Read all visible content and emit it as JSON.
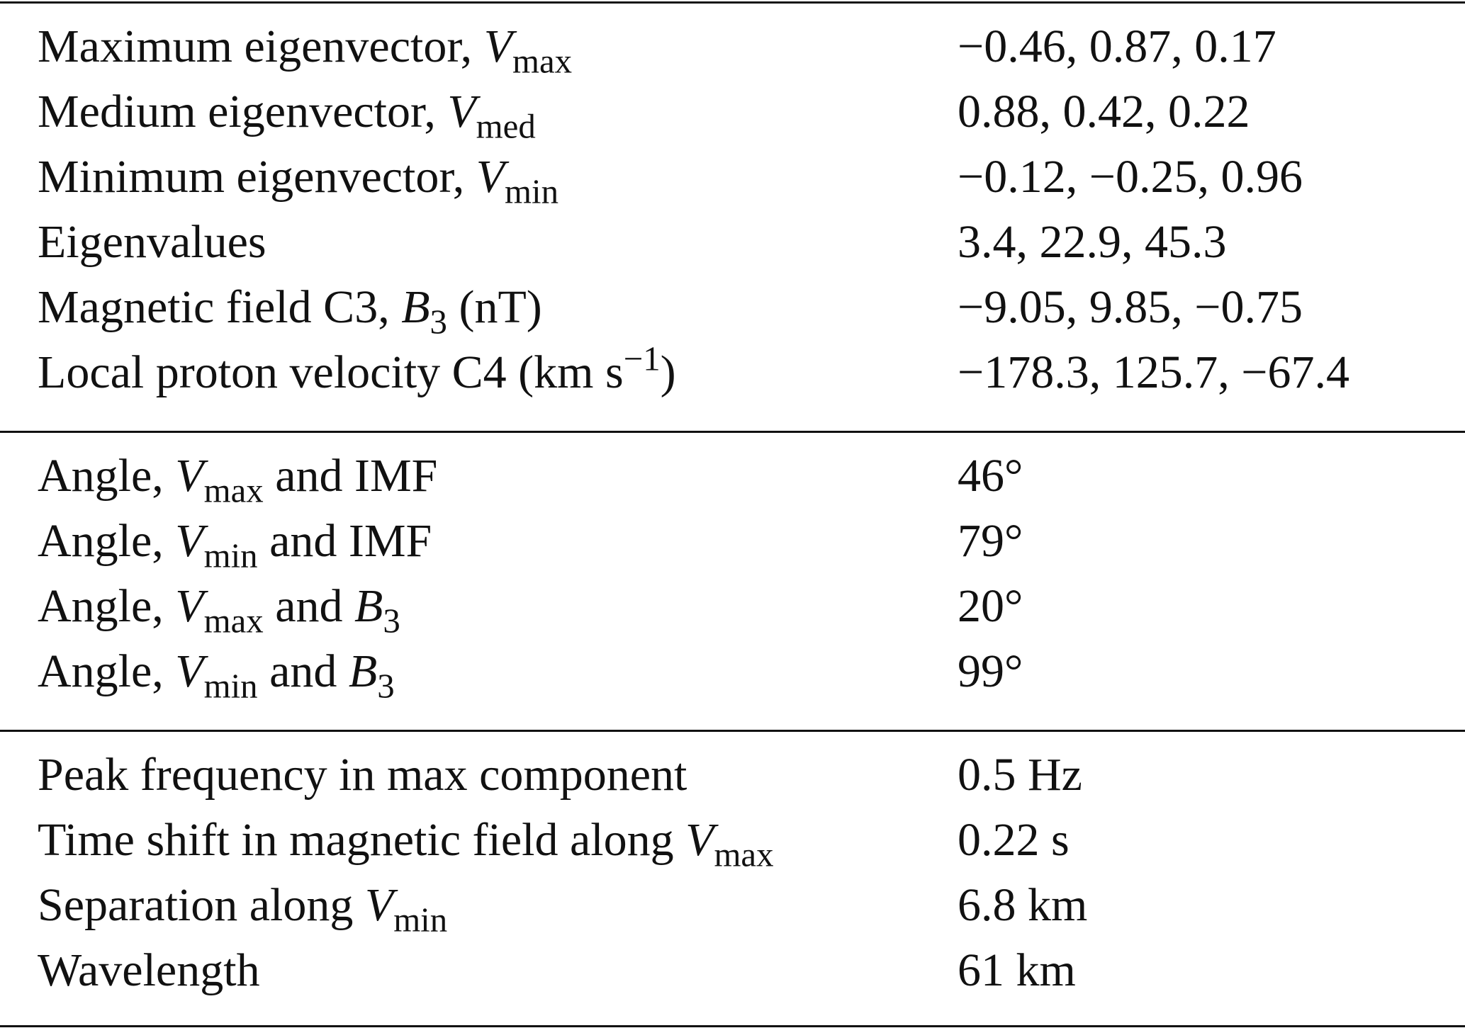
{
  "table": {
    "sections": [
      {
        "rows": [
          {
            "label": [
              {
                "text": "Maximum eigenvector, "
              },
              {
                "italic": "V"
              },
              {
                "sub": "max"
              }
            ],
            "value": "−0.46, 0.87, 0.17"
          },
          {
            "label": [
              {
                "text": "Medium eigenvector, "
              },
              {
                "italic": "V"
              },
              {
                "sub": "med"
              }
            ],
            "value": "0.88, 0.42, 0.22"
          },
          {
            "label": [
              {
                "text": "Minimum eigenvector, "
              },
              {
                "italic": "V"
              },
              {
                "sub": "min"
              }
            ],
            "value": "−0.12, −0.25, 0.96"
          },
          {
            "label": [
              {
                "text": "Eigenvalues"
              }
            ],
            "value": "3.4, 22.9, 45.3"
          },
          {
            "label": [
              {
                "text": "Magnetic field C3, "
              },
              {
                "italic": "B"
              },
              {
                "sub": "3"
              },
              {
                "text": " (nT)"
              }
            ],
            "value": "−9.05, 9.85, −0.75"
          },
          {
            "label": [
              {
                "text": "Local proton velocity C4 (km s"
              },
              {
                "sup": "−1"
              },
              {
                "text": ")"
              }
            ],
            "value": "−178.3, 125.7, −67.4"
          }
        ]
      },
      {
        "rows": [
          {
            "label": [
              {
                "text": "Angle, "
              },
              {
                "italic": "V"
              },
              {
                "sub": "max"
              },
              {
                "text": " and IMF"
              }
            ],
            "value": "46°"
          },
          {
            "label": [
              {
                "text": "Angle, "
              },
              {
                "italic": "V"
              },
              {
                "sub": "min"
              },
              {
                "text": " and IMF"
              }
            ],
            "value": "79°"
          },
          {
            "label": [
              {
                "text": "Angle, "
              },
              {
                "italic": "V"
              },
              {
                "sub": "max"
              },
              {
                "text": " and "
              },
              {
                "italic": "B"
              },
              {
                "sub": "3"
              }
            ],
            "value": "20°"
          },
          {
            "label": [
              {
                "text": "Angle, "
              },
              {
                "italic": "V"
              },
              {
                "sub": "min"
              },
              {
                "text": " and "
              },
              {
                "italic": "B"
              },
              {
                "sub": "3"
              }
            ],
            "value": "99°"
          }
        ]
      },
      {
        "rows": [
          {
            "label": [
              {
                "text": "Peak frequency in max component"
              }
            ],
            "value": "0.5 Hz"
          },
          {
            "label": [
              {
                "text": "Time shift in magnetic field along "
              },
              {
                "italic": "V"
              },
              {
                "sub": "max"
              }
            ],
            "value": "0.22 s"
          },
          {
            "label": [
              {
                "text": "Separation along "
              },
              {
                "italic": "V"
              },
              {
                "sub": "min"
              }
            ],
            "value": "6.8 km"
          },
          {
            "label": [
              {
                "text": "Wavelength"
              }
            ],
            "value": "61 km"
          }
        ]
      }
    ]
  }
}
